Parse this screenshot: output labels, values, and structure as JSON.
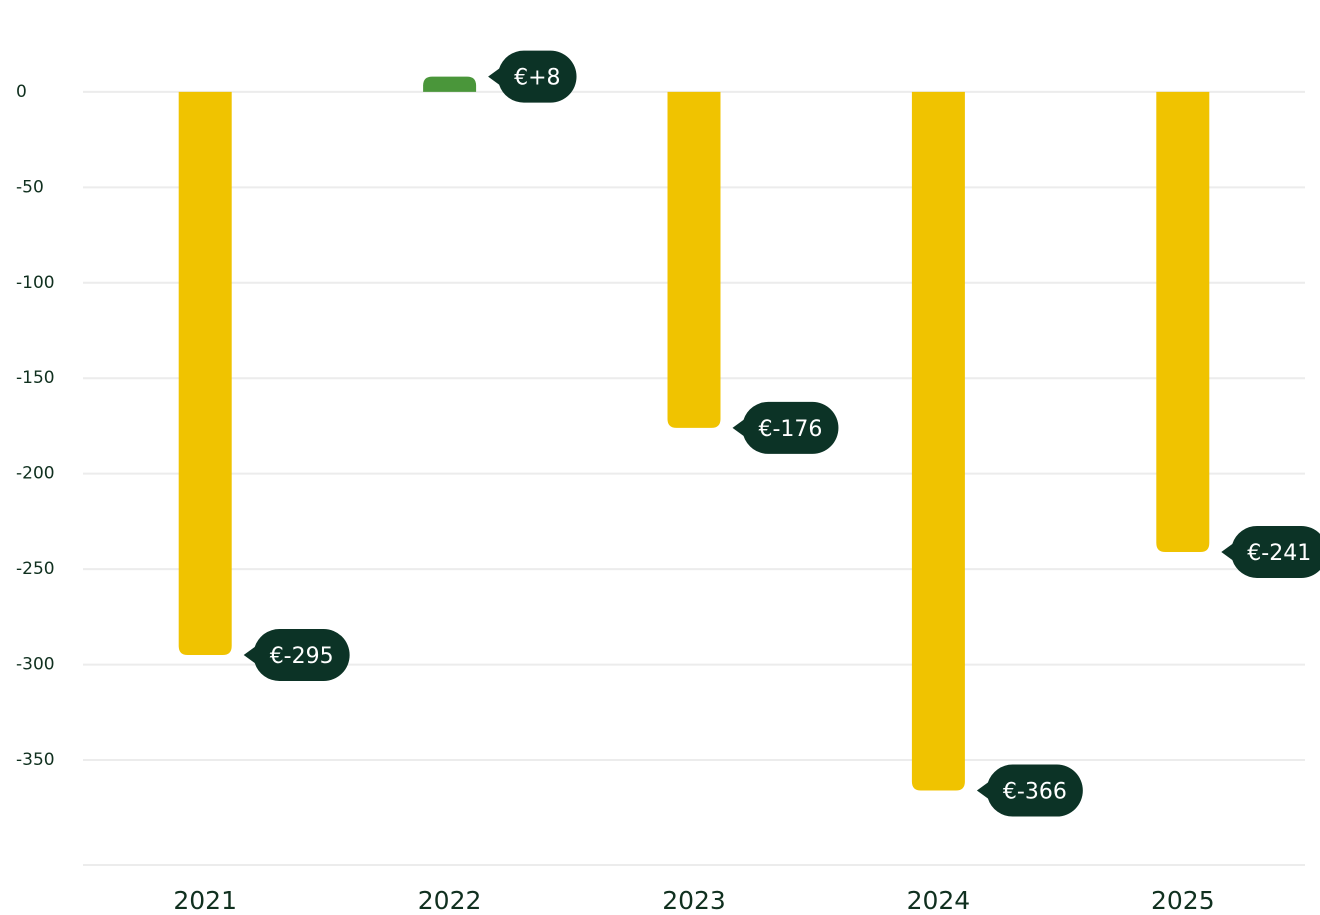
{
  "chart_data": {
    "type": "bar",
    "categories": [
      "2021",
      "2022",
      "2023",
      "2024",
      "2025"
    ],
    "values": [
      -295,
      8,
      -176,
      -366,
      -241
    ],
    "value_labels": [
      "€-295",
      "€+8",
      "€-176",
      "€-366",
      "€-241"
    ],
    "colors": [
      "#f0c300",
      "#4a963a",
      "#f0c300",
      "#f0c300",
      "#f0c300"
    ],
    "ylim": [
      -405,
      45
    ],
    "yticks": [
      0,
      -50,
      -100,
      -150,
      -200,
      -250,
      -300,
      -350
    ],
    "grid": true
  }
}
